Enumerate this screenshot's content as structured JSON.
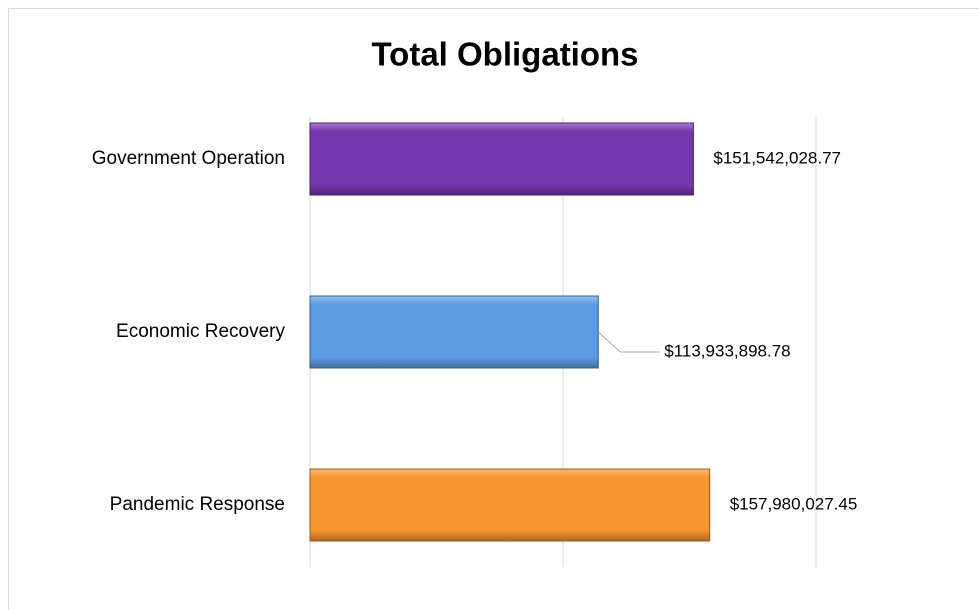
{
  "chart_data": {
    "type": "bar",
    "orientation": "horizontal",
    "title": "Total Obligations",
    "categories": [
      "Government Operation",
      "Economic Recovery",
      "Pandemic Response"
    ],
    "values": [
      151542028.77,
      113933898.78,
      157980027.45
    ],
    "value_labels": [
      "$151,542,028.77",
      "$113,933,898.78",
      "$157,980,027.45"
    ],
    "colors": [
      "#7537ad",
      "#5b9be1",
      "#f7952f"
    ],
    "xlim": [
      0,
      200000000
    ],
    "xticks": [
      0,
      100000000,
      200000000
    ],
    "grid": true
  }
}
